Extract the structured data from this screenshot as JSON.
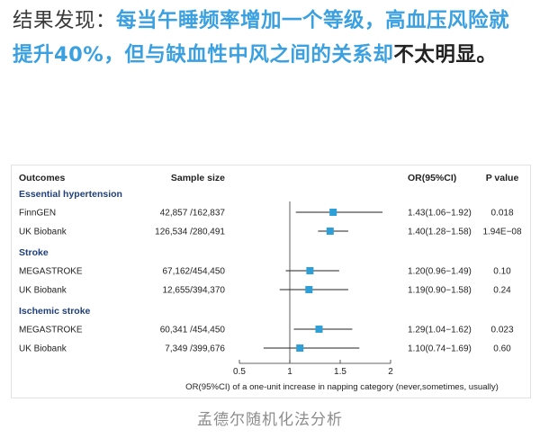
{
  "headline": {
    "lead": "结果发现：",
    "body": "每当午睡频率增加一个等级，高血压风险就提升40%，但与缺血性中风之间的关系却",
    "tail": "不太明显。"
  },
  "caption": "孟德尔随机化法分析",
  "chart_data": {
    "type": "forest",
    "columns": {
      "outcomes": "Outcomes",
      "sample_size": "Sample size",
      "or": "OR(95%CI)",
      "p": "P value"
    },
    "xlabel": "OR(95%CI) of a one-unit increase in napping category (never,sometimes, usually)",
    "xlim": [
      0.5,
      2
    ],
    "xscale": "linear",
    "ticks": [
      0.5,
      1,
      1.5,
      2
    ],
    "tick_labels": [
      "0.5",
      "1",
      "1.5",
      "2"
    ],
    "reference_line": 1,
    "colors": {
      "marker": "#2f9fd8",
      "ci": "#222222",
      "group": "#1f3f7a",
      "text": "#222222"
    },
    "groups": [
      {
        "label": "Essential hypertension",
        "rows": [
          {
            "label": "FinnGEN",
            "sample": "42,857 /162,837",
            "or": 1.43,
            "lo": 1.06,
            "hi": 1.92,
            "or_text": "1.43(1.06−1.92)",
            "p": "0.018"
          },
          {
            "label": "UK Biobank",
            "sample": "126,534 /280,491",
            "or": 1.4,
            "lo": 1.28,
            "hi": 1.58,
            "or_text": "1.40(1.28−1.58)",
            "p": "1.94E−08"
          }
        ]
      },
      {
        "label": "Stroke",
        "rows": [
          {
            "label": "MEGASTROKE",
            "sample": "67,162/454,450",
            "or": 1.2,
            "lo": 0.96,
            "hi": 1.49,
            "or_text": "1.20(0.96−1.49)",
            "p": "0.10"
          },
          {
            "label": "UK Biobank",
            "sample": "12,655/394,370",
            "or": 1.19,
            "lo": 0.9,
            "hi": 1.58,
            "or_text": "1.19(0.90−1.58)",
            "p": "0.24"
          }
        ]
      },
      {
        "label": "Ischemic stroke",
        "rows": [
          {
            "label": "MEGASTROKE",
            "sample": "60,341 /454,450",
            "or": 1.29,
            "lo": 1.04,
            "hi": 1.62,
            "or_text": "1.29(1.04−1.62)",
            "p": "0.023"
          },
          {
            "label": "UK Biobank",
            "sample": "7,349 /399,676",
            "or": 1.1,
            "lo": 0.74,
            "hi": 1.69,
            "or_text": "1.10(0.74−1.69)",
            "p": "0.60"
          }
        ]
      }
    ]
  }
}
